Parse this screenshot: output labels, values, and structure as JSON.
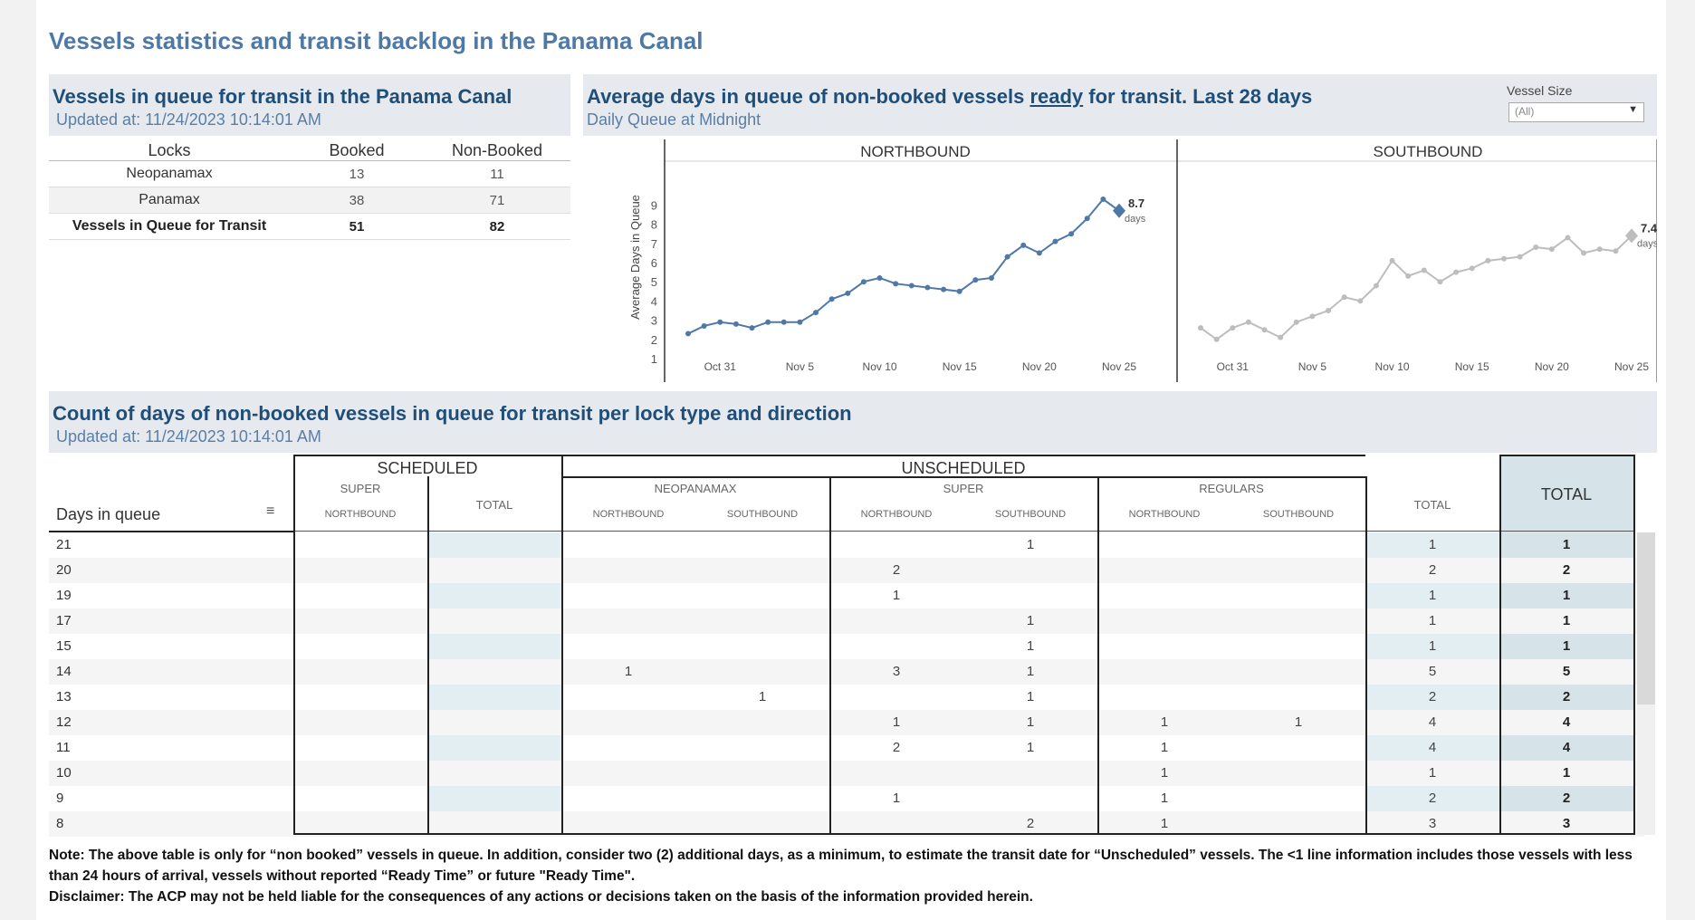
{
  "page": {
    "title": "Vessels statistics and transit backlog in the Panama Canal"
  },
  "queue_panel": {
    "title": "Vessels in queue for transit in the Panama Canal",
    "updated": "Updated at:  11/24/2023 10:14:01 AM",
    "headers": {
      "locks": "Locks",
      "booked": "Booked",
      "non_booked": "Non-Booked"
    },
    "rows": [
      {
        "lock": "Neopanamax",
        "booked": "13",
        "non_booked": "11"
      },
      {
        "lock": "Panamax",
        "booked": "38",
        "non_booked": "71"
      },
      {
        "lock": "Vessels in Queue for Transit",
        "booked": "51",
        "non_booked": "82"
      }
    ]
  },
  "chart_panel": {
    "title_pre": "Average days in queue of non-booked vessels ",
    "title_underlined": "ready",
    "title_post": " for transit. Last 28 days",
    "subtitle": "Daily Queue at Midnight",
    "filter": {
      "label": "Vessel Size",
      "value": "(All)"
    }
  },
  "chart_data": [
    {
      "type": "line",
      "title": "NORTHBOUND",
      "ylabel": "Average Days in Queue",
      "xlabel": "",
      "ylim": [
        0,
        10
      ],
      "yticks": [
        "1",
        "2",
        "3",
        "4",
        "5",
        "6",
        "7",
        "8",
        "9"
      ],
      "xticks": [
        "Oct 31",
        "Nov 5",
        "Nov 10",
        "Nov 15",
        "Nov 20",
        "Nov 25"
      ],
      "color": "#4e79a7",
      "values": [
        2.3,
        2.7,
        2.9,
        2.8,
        2.6,
        2.9,
        2.9,
        2.9,
        3.4,
        4.1,
        4.4,
        5.0,
        5.2,
        4.9,
        4.8,
        4.7,
        4.6,
        4.5,
        5.1,
        5.2,
        6.3,
        6.9,
        6.5,
        7.1,
        7.5,
        8.3,
        9.3,
        8.7
      ],
      "last_label": "8.7",
      "last_unit": "days"
    },
    {
      "type": "line",
      "title": "SOUTHBOUND",
      "ylim": [
        0,
        10
      ],
      "xticks": [
        "Oct 31",
        "Nov 5",
        "Nov 10",
        "Nov 15",
        "Nov 20",
        "Nov 25"
      ],
      "color": "#bdbdbd",
      "values": [
        2.6,
        2.0,
        2.6,
        2.9,
        2.5,
        2.1,
        2.9,
        3.2,
        3.5,
        4.2,
        4.0,
        4.8,
        6.1,
        5.3,
        5.6,
        5.0,
        5.5,
        5.7,
        6.1,
        6.2,
        6.3,
        6.8,
        6.7,
        7.3,
        6.5,
        6.7,
        6.6,
        7.4
      ],
      "last_label": "7.4",
      "last_unit": "days"
    }
  ],
  "count_panel": {
    "title": "Count of days of non-booked vessels in queue for transit per lock type and direction",
    "updated": "Updated at:  11/24/2023 10:14:01 AM",
    "headers": {
      "scheduled": "SCHEDULED",
      "unscheduled": "UNSCHEDULED",
      "super": "SUPER",
      "neopanamax": "NEOPANAMAX",
      "regulars": "REGULARS",
      "northbound": "NORTHBOUND",
      "southbound": "SOUTHBOUND",
      "total_small": "TOTAL",
      "total": "TOTAL",
      "days_in_queue": "Days in queue"
    },
    "rows": [
      {
        "day": "21",
        "s_nb": "",
        "s_tot": "",
        "n_nb": "",
        "n_sb": "",
        "su_nb": "",
        "su_sb": "1",
        "r_nb": "",
        "r_sb": "",
        "u_tot": "1",
        "total": "1"
      },
      {
        "day": "20",
        "s_nb": "",
        "s_tot": "",
        "n_nb": "",
        "n_sb": "",
        "su_nb": "2",
        "su_sb": "",
        "r_nb": "",
        "r_sb": "",
        "u_tot": "2",
        "total": "2"
      },
      {
        "day": "19",
        "s_nb": "",
        "s_tot": "",
        "n_nb": "",
        "n_sb": "",
        "su_nb": "1",
        "su_sb": "",
        "r_nb": "",
        "r_sb": "",
        "u_tot": "1",
        "total": "1"
      },
      {
        "day": "17",
        "s_nb": "",
        "s_tot": "",
        "n_nb": "",
        "n_sb": "",
        "su_nb": "",
        "su_sb": "1",
        "r_nb": "",
        "r_sb": "",
        "u_tot": "1",
        "total": "1"
      },
      {
        "day": "15",
        "s_nb": "",
        "s_tot": "",
        "n_nb": "",
        "n_sb": "",
        "su_nb": "",
        "su_sb": "1",
        "r_nb": "",
        "r_sb": "",
        "u_tot": "1",
        "total": "1"
      },
      {
        "day": "14",
        "s_nb": "",
        "s_tot": "",
        "n_nb": "1",
        "n_sb": "",
        "su_nb": "3",
        "su_sb": "1",
        "r_nb": "",
        "r_sb": "",
        "u_tot": "5",
        "total": "5"
      },
      {
        "day": "13",
        "s_nb": "",
        "s_tot": "",
        "n_nb": "",
        "n_sb": "1",
        "su_nb": "",
        "su_sb": "1",
        "r_nb": "",
        "r_sb": "",
        "u_tot": "2",
        "total": "2"
      },
      {
        "day": "12",
        "s_nb": "",
        "s_tot": "",
        "n_nb": "",
        "n_sb": "",
        "su_nb": "1",
        "su_sb": "1",
        "r_nb": "1",
        "r_sb": "1",
        "u_tot": "4",
        "total": "4"
      },
      {
        "day": "11",
        "s_nb": "",
        "s_tot": "",
        "n_nb": "",
        "n_sb": "",
        "su_nb": "2",
        "su_sb": "1",
        "r_nb": "1",
        "r_sb": "",
        "u_tot": "4",
        "total": "4"
      },
      {
        "day": "10",
        "s_nb": "",
        "s_tot": "",
        "n_nb": "",
        "n_sb": "",
        "su_nb": "",
        "su_sb": "",
        "r_nb": "1",
        "r_sb": "",
        "u_tot": "1",
        "total": "1"
      },
      {
        "day": "9",
        "s_nb": "",
        "s_tot": "",
        "n_nb": "",
        "n_sb": "",
        "su_nb": "1",
        "su_sb": "",
        "r_nb": "1",
        "r_sb": "",
        "u_tot": "2",
        "total": "2"
      },
      {
        "day": "8",
        "s_nb": "",
        "s_tot": "",
        "n_nb": "",
        "n_sb": "",
        "su_nb": "",
        "su_sb": "2",
        "r_nb": "1",
        "r_sb": "",
        "u_tot": "3",
        "total": "3"
      }
    ]
  },
  "notes": {
    "note": "Note:  The above table is only for “non booked” vessels in queue. In addition, consider two (2) additional days, as a minimum, to estimate the transit date for “Unscheduled” vessels.  The <1 line information includes those vessels with less than 24 hours of arrival, vessels without reported “Ready Time” or future \"Ready Time\".",
    "disclaimer": "Disclaimer: The ACP may not be held liable for the consequences of any actions or decisions taken on the basis of the information provided herein."
  }
}
